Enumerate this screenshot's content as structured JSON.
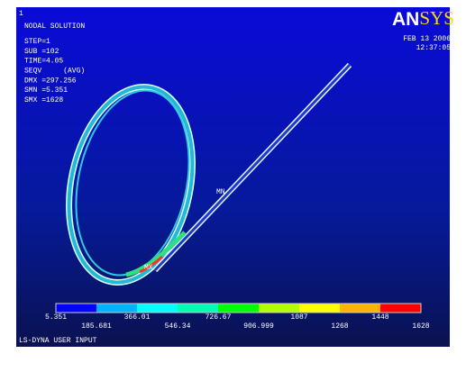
{
  "header": {
    "window_number": "1",
    "title": "NODAL SOLUTION",
    "info": [
      "STEP=1",
      "SUB =102",
      "TIME=4.05",
      "SEQV     (AVG)",
      "DMX =297.256",
      "SMN =5.351",
      "SMX =1628"
    ]
  },
  "logo": {
    "part1": "AN",
    "part2": "SYS"
  },
  "timestamp": {
    "date": "FEB 13 2006",
    "time": "12:37:05"
  },
  "markers": {
    "min": "MN",
    "max": "MX"
  },
  "legend": {
    "colors": [
      "#0000ff",
      "#00b2ff",
      "#00ffff",
      "#00ffb2",
      "#00ff00",
      "#b2ff00",
      "#ffff00",
      "#ffb200",
      "#ff0000"
    ],
    "labels": [
      "5.351",
      "185.681",
      "366.01",
      "546.34",
      "726.67",
      "906.999",
      "1087",
      "1268",
      "1448",
      "1628"
    ]
  },
  "footer": "LS-DYNA USER INPUT"
}
